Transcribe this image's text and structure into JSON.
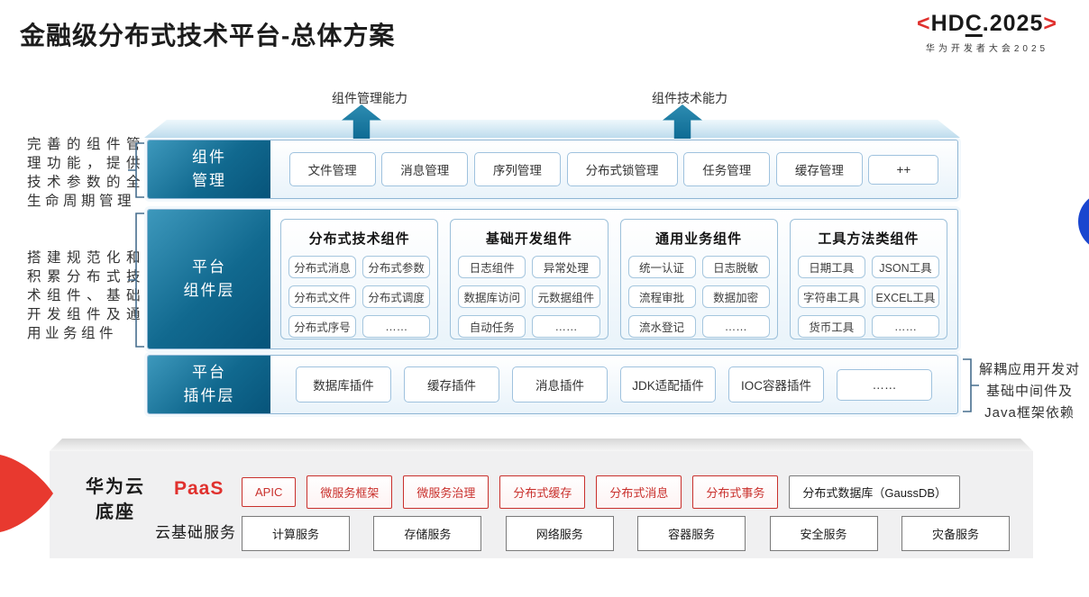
{
  "title": "金融级分布式技术平台-总体方案",
  "logo": {
    "bracket_left": "<",
    "hd": "HD",
    "c": "C",
    "rest": ".2025",
    "bracket_right": ">",
    "subtitle": "华为开发者大会2025"
  },
  "arrows": [
    {
      "label": "组件管理能力"
    },
    {
      "label": "组件技术能力"
    }
  ],
  "left_notes": [
    "完善的组件管理功能，提供技术参数的全生命周期管理",
    "搭建规范化和积累分布式技术组件、基础开发组件及通用业务组件"
  ],
  "right_note": "解耦应用开发对基础中间件及Java框架依赖",
  "rows": {
    "management": {
      "label": "组件\n管理",
      "items": [
        "文件管理",
        "消息管理",
        "序列管理",
        "分布式锁管理",
        "任务管理",
        "缓存管理",
        "++"
      ]
    },
    "components": {
      "label": "平台\n组件层",
      "columns": [
        {
          "title": "分布式技术组件",
          "items": [
            "分布式消息",
            "分布式参数",
            "分布式文件",
            "分布式调度",
            "分布式序号",
            "……"
          ]
        },
        {
          "title": "基础开发组件",
          "items": [
            "日志组件",
            "异常处理",
            "数据库访问",
            "元数据组件",
            "自动任务",
            "……"
          ]
        },
        {
          "title": "通用业务组件",
          "items": [
            "统一认证",
            "日志脱敏",
            "流程审批",
            "数据加密",
            "流水登记",
            "……"
          ]
        },
        {
          "title": "工具方法类组件",
          "items": [
            "日期工具",
            "JSON工具",
            "字符串工具",
            "EXCEL工具",
            "货币工具",
            "……"
          ]
        }
      ]
    },
    "plugins": {
      "label": "平台\n插件层",
      "items": [
        "数据库插件",
        "缓存插件",
        "消息插件",
        "JDK适配插件",
        "IOC容器插件",
        "……"
      ]
    }
  },
  "foundation": {
    "base_label": "华为云\n底座",
    "paas": {
      "label": "PaaS",
      "items": [
        {
          "label": "APIC",
          "variant": "red"
        },
        {
          "label": "微服务框架",
          "variant": "red"
        },
        {
          "label": "微服务治理",
          "variant": "red"
        },
        {
          "label": "分布式缓存",
          "variant": "red"
        },
        {
          "label": "分布式消息",
          "variant": "red"
        },
        {
          "label": "分布式事务",
          "variant": "red"
        },
        {
          "label": "分布式数据库（GaussDB）",
          "variant": "gray"
        }
      ]
    },
    "cloud": {
      "label": "云基础服务",
      "items": [
        "计算服务",
        "存储服务",
        "网络服务",
        "容器服务",
        "安全服务",
        "灾备服务"
      ]
    }
  },
  "colors": {
    "teal": "#11698f",
    "light_blue_border": "#9fc2de",
    "red": "#e0312e",
    "blue_circle": "#1a46cf",
    "panel_gray": "#f0f0f1"
  }
}
